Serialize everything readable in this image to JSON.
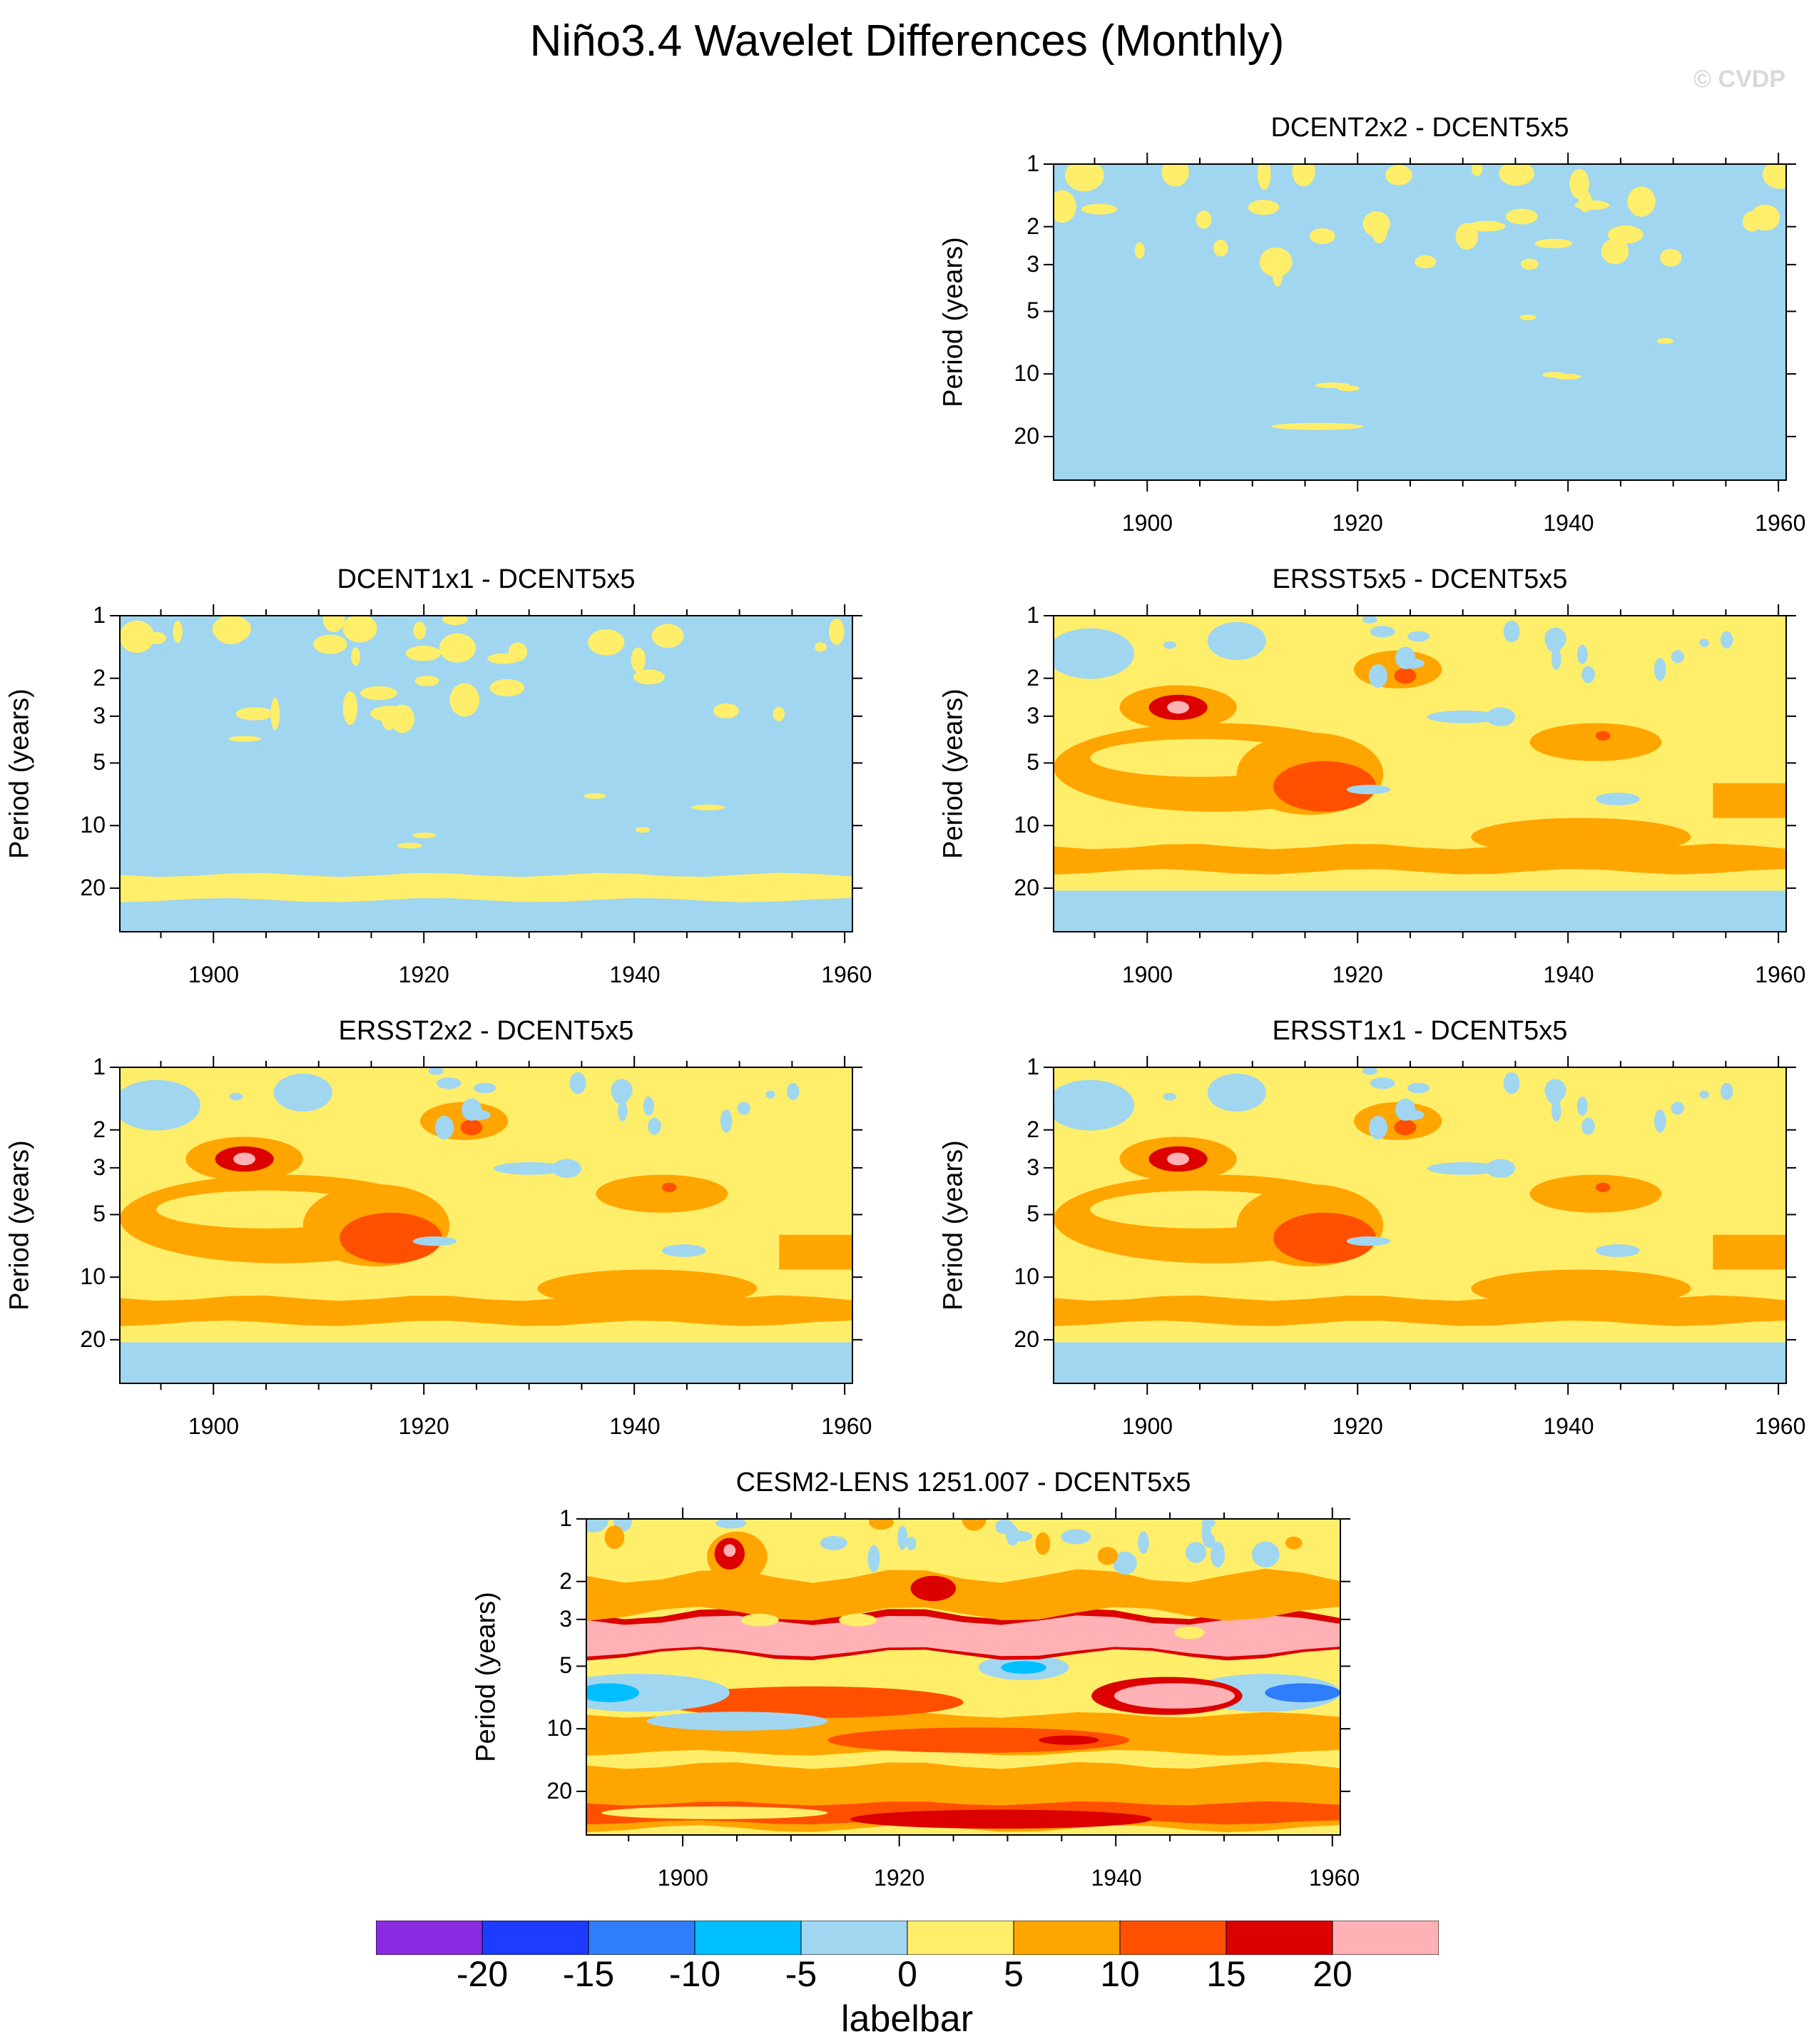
{
  "title": "Niño3.4 Wavelet Differences (Monthly)",
  "watermark": "© CVDP",
  "chart_data": {
    "type": "heatmap",
    "ylabel": "Period (years)",
    "yticks": [
      "1",
      "2",
      "3",
      "5",
      "10",
      "20"
    ],
    "xticks": [
      "1900",
      "1920",
      "1940",
      "1960"
    ],
    "xlim": [
      1891,
      1962
    ],
    "yscale": "log",
    "colorbar": {
      "title": "labelbar",
      "levels": [
        "-20",
        "-15",
        "-10",
        "-5",
        "0",
        "5",
        "10",
        "15",
        "20"
      ],
      "colors": [
        "#8a2be2",
        "#1e3cff",
        "#2f7dfa",
        "#00bfff",
        "#a0d6f0",
        "#ffee6a",
        "#ffa500",
        "#ff5000",
        "#dc0000",
        "#ffb1b5"
      ]
    },
    "panels": [
      {
        "id": "p1",
        "title": "DCENT2x2 - DCENT5x5",
        "pattern": "near-zero"
      },
      {
        "id": "p2",
        "title": "DCENT1x1 - DCENT5x5",
        "pattern": "near-zero"
      },
      {
        "id": "p3",
        "title": "ERSST5x5 - DCENT5x5",
        "pattern": "moderate"
      },
      {
        "id": "p4",
        "title": "ERSST2x2 - DCENT5x5",
        "pattern": "moderate"
      },
      {
        "id": "p5",
        "title": "ERSST1x1 - DCENT5x5",
        "pattern": "moderate"
      },
      {
        "id": "p6",
        "title": "CESM2-LENS 1251.007 - DCENT5x5",
        "pattern": "strong"
      }
    ]
  }
}
